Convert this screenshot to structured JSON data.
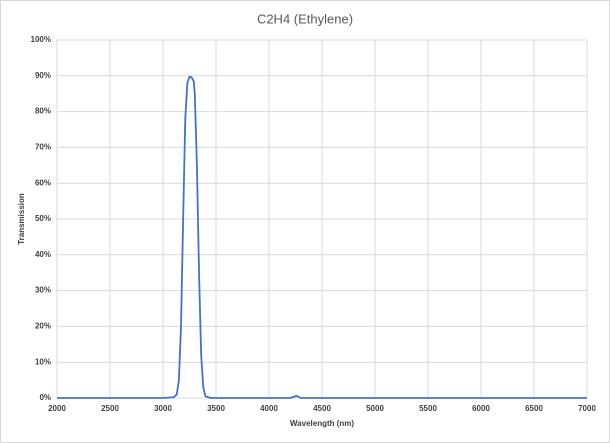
{
  "chart_data": {
    "type": "line",
    "title": "C2H4 (Ethylene)",
    "x_label": "Wavelength (nm)",
    "y_label": "Transmission",
    "series": [
      {
        "name": "C2H4",
        "color": "#4472c4",
        "x": [
          2000,
          3000,
          3100,
          3130,
          3150,
          3170,
          3190,
          3210,
          3230,
          3250,
          3270,
          3290,
          3300,
          3320,
          3340,
          3360,
          3380,
          3400,
          3450,
          4200,
          4260,
          4300,
          7000
        ],
        "values": [
          0,
          0,
          0.2,
          1,
          5,
          20,
          50,
          78,
          88,
          89.8,
          89.5,
          88.5,
          85,
          65,
          35,
          12,
          3,
          0.5,
          0,
          0,
          0.6,
          0,
          0
        ]
      }
    ],
    "xlim": [
      2000,
      7000
    ],
    "xticks": [
      2000,
      2500,
      3000,
      3500,
      4000,
      4500,
      5000,
      5500,
      6000,
      6500,
      7000
    ],
    "ylim": [
      0,
      100
    ],
    "yticks": [
      {
        "value": 0,
        "label": "0%"
      },
      {
        "value": 10,
        "label": "10%"
      },
      {
        "value": 20,
        "label": "20%"
      },
      {
        "value": 30,
        "label": "30%"
      },
      {
        "value": 40,
        "label": "40%"
      },
      {
        "value": 50,
        "label": "50%"
      },
      {
        "value": 60,
        "label": "60%"
      },
      {
        "value": 70,
        "label": "70%"
      },
      {
        "value": 80,
        "label": "80%"
      },
      {
        "value": 90,
        "label": "90%"
      },
      {
        "value": 100,
        "label": "100%"
      }
    ],
    "grid": true
  }
}
